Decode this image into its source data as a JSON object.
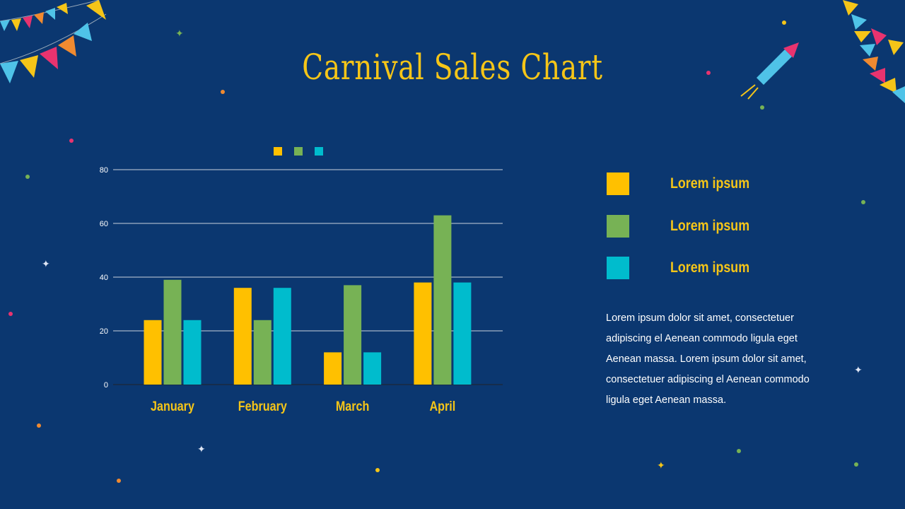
{
  "title": "Carnival Sales Chart",
  "chart_data": {
    "type": "bar",
    "categories": [
      "January",
      "February",
      "March",
      "April"
    ],
    "series": [
      {
        "color": "#ffc000",
        "values": [
          24,
          36,
          12,
          38
        ]
      },
      {
        "color": "#77b255",
        "values": [
          39,
          24,
          37,
          63
        ]
      },
      {
        "color": "#00bccd",
        "values": [
          24,
          36,
          12,
          38
        ]
      }
    ],
    "ylim": [
      0,
      80
    ],
    "yticks": [
      0,
      20,
      40,
      60,
      80
    ],
    "grid": true,
    "legend": "top-center"
  },
  "side_legend": [
    {
      "label": "Lorem ipsum",
      "color": "#ffc000"
    },
    {
      "label": "Lorem ipsum",
      "color": "#77b255"
    },
    {
      "label": "Lorem ipsum",
      "color": "#00bccd"
    }
  ],
  "description": "Lorem ipsum dolor sit amet, consectetuer adipiscing el Aenean commodo ligula eget Aenean massa. Lorem ipsum dolor sit amet, consectetuer adipiscing el Aenean commodo ligula eget Aenean massa."
}
